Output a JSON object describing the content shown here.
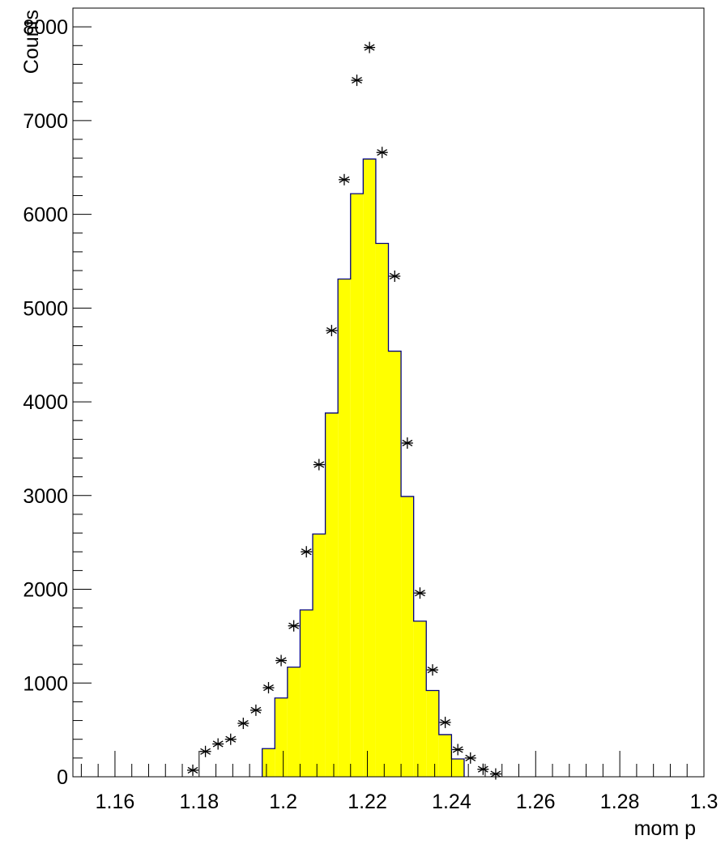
{
  "chart_data": {
    "type": "bar",
    "title": "",
    "xlabel": "mom p",
    "ylabel": "Counts",
    "xlim": [
      1.15,
      1.3
    ],
    "ylim": [
      0,
      8200
    ],
    "x_tick_labels": [
      "1.16",
      "1.18",
      "1.2",
      "1.22",
      "1.24",
      "1.26",
      "1.28",
      "1.3"
    ],
    "y_tick_labels": [
      "0",
      "1000",
      "2000",
      "3000",
      "4000",
      "5000",
      "6000",
      "7000",
      "8000"
    ],
    "grid": false,
    "legend": "none",
    "series": [
      {
        "kind": "histogram",
        "fill_color": "#ffff00",
        "line_color": "#000080",
        "bin_width": 0.003,
        "bins": [
          {
            "x0": 1.195,
            "value": 300
          },
          {
            "x0": 1.198,
            "value": 840
          },
          {
            "x0": 1.201,
            "value": 1170
          },
          {
            "x0": 1.204,
            "value": 1780
          },
          {
            "x0": 1.207,
            "value": 2590
          },
          {
            "x0": 1.21,
            "value": 3880
          },
          {
            "x0": 1.213,
            "value": 5310
          },
          {
            "x0": 1.216,
            "value": 6220
          },
          {
            "x0": 1.219,
            "value": 6590
          },
          {
            "x0": 1.222,
            "value": 5690
          },
          {
            "x0": 1.225,
            "value": 4540
          },
          {
            "x0": 1.228,
            "value": 2990
          },
          {
            "x0": 1.231,
            "value": 1660
          },
          {
            "x0": 1.234,
            "value": 920
          },
          {
            "x0": 1.237,
            "value": 450
          },
          {
            "x0": 1.24,
            "value": 190
          }
        ]
      },
      {
        "kind": "markers",
        "marker": "star",
        "color": "#000000",
        "x": [
          1.1785,
          1.1815,
          1.1845,
          1.1875,
          1.1905,
          1.1935,
          1.1965,
          1.1995,
          1.2025,
          1.2055,
          1.2085,
          1.2115,
          1.2145,
          1.2175,
          1.2205,
          1.2235,
          1.2265,
          1.2295,
          1.2325,
          1.2355,
          1.2385,
          1.2415,
          1.2445,
          1.2475,
          1.2505
        ],
        "y": [
          70,
          270,
          350,
          400,
          570,
          710,
          950,
          1240,
          1610,
          2400,
          3330,
          4760,
          6370,
          7430,
          7780,
          6660,
          5340,
          3560,
          1960,
          1140,
          580,
          290,
          200,
          80,
          30
        ]
      }
    ]
  }
}
